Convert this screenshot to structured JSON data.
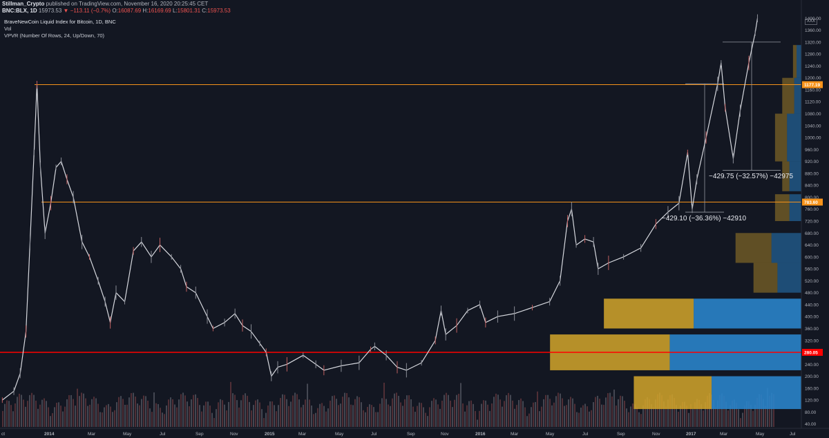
{
  "header": {
    "author": "Stillman_Crypto",
    "published": "published on TradingView.com, November 16, 2020 20:25:45 CET",
    "symbol": "BNC:BLX, 1D",
    "last": "15973.53",
    "change": "−113.11 (−0.7%)",
    "open_label": "O:",
    "open": "16087.69",
    "high_label": "H:",
    "high": "16169.69",
    "low_label": "L:",
    "low": "15801.31",
    "close_label": "C:",
    "close": "15973.53"
  },
  "legend": {
    "main": "BraveNewCoin Liquid Index for Bitcoin, 1D, BNC",
    "vol": "Vol",
    "vpvr": "VPVR (Number Of Rows, 24, Up/Down, 70)"
  },
  "xxx_label": "XXX",
  "measurements": [
    {
      "text": "−429.75 (−32.57%) −42975"
    },
    {
      "text": "−429.10 (−36.36%) −42910"
    }
  ],
  "price_badges": {
    "upper_level": "1177.19",
    "lower_level": "783.60",
    "red_level": "280.05"
  },
  "colors": {
    "background": "#131722",
    "orange_level": "#f7931a",
    "red_level": "#ff0000",
    "vpvr_up": "#d4a62a",
    "vpvr_down": "#2a83c9",
    "candle": "#8a8d96",
    "volume": "#6b3a3f"
  },
  "chart_data": {
    "type": "line",
    "title": "BraveNewCoin Liquid Index for Bitcoin, 1D, BNC",
    "x_ticks": [
      "ct",
      "2014",
      "Mar",
      "May",
      "Jul",
      "Sep",
      "Nov",
      "2015",
      "Mar",
      "May",
      "Jul",
      "Sep",
      "Nov",
      "2016",
      "Mar",
      "May",
      "Jul",
      "Sep",
      "Nov",
      "2017",
      "Mar",
      "May",
      "Jul"
    ],
    "y_ticks": [
      40,
      80,
      120,
      160,
      200,
      240,
      280,
      320,
      360,
      400,
      440,
      480,
      520,
      560,
      600,
      640,
      680,
      720,
      760,
      800,
      840,
      880,
      920,
      960,
      1000,
      1040,
      1080,
      1120,
      1160,
      1200,
      1240,
      1280,
      1320,
      1360,
      1400
    ],
    "ylim": [
      30,
      1410
    ],
    "series": [
      {
        "x": [
          "2013-10-05",
          "2013-10-25",
          "2013-11-05",
          "2013-11-15",
          "2013-11-22",
          "2013-11-29",
          "2013-12-04",
          "2013-12-10",
          "2013-12-18",
          "2013-12-28",
          "2014-01-06",
          "2014-01-15",
          "2014-01-25",
          "2014-02-05",
          "2014-02-20",
          "2014-03-05",
          "2014-03-20",
          "2014-04-01",
          "2014-04-10",
          "2014-04-20",
          "2014-05-05",
          "2014-05-20",
          "2014-06-03",
          "2014-06-20",
          "2014-07-05",
          "2014-07-25",
          "2014-08-10",
          "2014-08-20",
          "2014-09-05",
          "2014-09-25",
          "2014-10-05",
          "2014-10-25",
          "2014-11-12",
          "2014-11-25",
          "2014-12-10",
          "2014-12-25",
          "2015-01-05",
          "2015-01-14",
          "2015-01-25",
          "2015-02-10",
          "2015-03-10",
          "2015-04-01",
          "2015-04-15",
          "2015-05-15",
          "2015-06-15",
          "2015-07-05",
          "2015-07-12",
          "2015-08-01",
          "2015-08-20",
          "2015-09-05",
          "2015-10-01",
          "2015-10-25",
          "2015-11-04",
          "2015-11-12",
          "2015-12-01",
          "2015-12-20",
          "2016-01-10",
          "2016-01-20",
          "2016-02-10",
          "2016-03-10",
          "2016-04-10",
          "2016-05-10",
          "2016-05-28",
          "2016-06-10",
          "2016-06-17",
          "2016-06-25",
          "2016-07-10",
          "2016-07-25",
          "2016-08-02",
          "2016-08-20",
          "2016-09-15",
          "2016-10-15",
          "2016-11-10",
          "2016-12-01",
          "2016-12-20",
          "2017-01-04",
          "2017-01-12",
          "2017-01-20",
          "2017-02-05",
          "2017-02-25",
          "2017-03-03",
          "2017-03-10",
          "2017-03-24",
          "2017-04-05",
          "2017-04-20",
          "2017-05-01",
          "2017-05-05"
        ],
        "y": [
          120,
          150,
          210,
          350,
          650,
          950,
          1177,
          900,
          680,
          780,
          900,
          920,
          860,
          800,
          650,
          600,
          520,
          450,
          380,
          480,
          450,
          620,
          650,
          600,
          640,
          600,
          560,
          500,
          480,
          400,
          360,
          380,
          410,
          370,
          350,
          310,
          280,
          200,
          230,
          240,
          270,
          240,
          220,
          235,
          245,
          290,
          300,
          270,
          230,
          220,
          245,
          320,
          420,
          340,
          370,
          420,
          440,
          380,
          400,
          410,
          430,
          450,
          520,
          720,
          760,
          640,
          660,
          650,
          560,
          580,
          600,
          630,
          710,
          750,
          780,
          950,
          760,
          860,
          1000,
          1180,
          1250,
          1100,
          930,
          1090,
          1250,
          1350,
          1400
        ],
        "name": ""
      }
    ],
    "horizontal_levels": [
      1177.19,
      783.6,
      280.05
    ],
    "measure_ranges": [
      {
        "from": 1320,
        "to": 890
      },
      {
        "from": 1180,
        "to": 750
      }
    ],
    "vpvr_rows": [
      {
        "low": 90,
        "high": 200,
        "up": 0.65,
        "down": 0.75
      },
      {
        "low": 220,
        "high": 340,
        "up": 1.0,
        "down": 1.1
      },
      {
        "low": 360,
        "high": 460,
        "up": 0.75,
        "down": 0.9
      },
      {
        "low": 480,
        "high": 580,
        "up": 0.2,
        "down": 0.2
      },
      {
        "low": 580,
        "high": 680,
        "up": 0.3,
        "down": 0.25
      },
      {
        "low": 720,
        "high": 810,
        "up": 0.12,
        "down": 0.1
      },
      {
        "low": 820,
        "high": 920,
        "up": 0.06,
        "down": 0.1
      },
      {
        "low": 920,
        "high": 1080,
        "up": 0.1,
        "down": 0.12
      },
      {
        "low": 1080,
        "high": 1200,
        "up": 0.1,
        "down": 0.06
      },
      {
        "low": 1200,
        "high": 1310,
        "up": 0.03,
        "down": 0.04
      }
    ],
    "grid": false
  }
}
